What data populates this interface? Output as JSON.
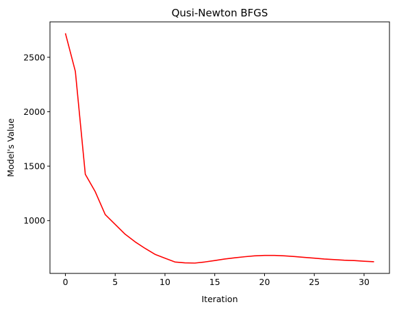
{
  "chart_data": {
    "type": "line",
    "title": "Qusi-Newton BFGS",
    "xlabel": "Iteration",
    "ylabel": "Model's Value",
    "xlim": [
      -1.55,
      32.55
    ],
    "ylim": [
      515,
      2825
    ],
    "xticks": [
      0,
      5,
      10,
      15,
      20,
      25,
      30
    ],
    "yticks": [
      1000,
      1500,
      2000,
      2500
    ],
    "grid": false,
    "series": [
      {
        "color": "#ff0000",
        "x": [
          0,
          1,
          2,
          3,
          4,
          5,
          6,
          7,
          8,
          9,
          10,
          11,
          12,
          13,
          14,
          15,
          16,
          17,
          18,
          19,
          20,
          21,
          22,
          23,
          24,
          25,
          26,
          27,
          28,
          29,
          30,
          31
        ],
        "y": [
          2720,
          2370,
          1425,
          1265,
          1055,
          965,
          875,
          805,
          745,
          690,
          655,
          620,
          612,
          610,
          620,
          633,
          647,
          658,
          668,
          676,
          680,
          680,
          676,
          670,
          662,
          655,
          647,
          642,
          636,
          633,
          627,
          622
        ]
      }
    ]
  }
}
